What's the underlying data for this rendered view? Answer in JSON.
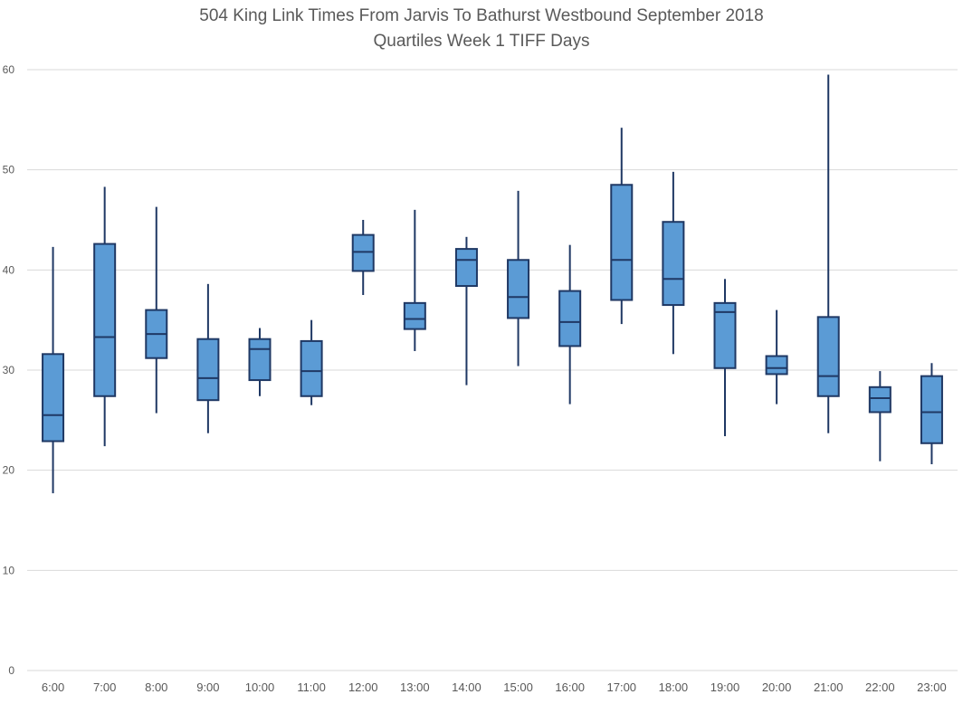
{
  "chart_data": {
    "type": "box",
    "title": "504 King Link Times From Jarvis To Bathurst Westbound September 2018",
    "subtitle": "Quartiles Week 1 TIFF Days",
    "xlabel": "",
    "ylabel": "",
    "ylim": [
      0,
      60
    ],
    "yticks": [
      "0",
      "10",
      "20",
      "30",
      "40",
      "50",
      "60"
    ],
    "grid": true,
    "legend": "none",
    "colors": {
      "box_fill": "#5b9bd5",
      "box_stroke": "#1f3864",
      "grid": "#d9d9d9",
      "text": "#595959"
    },
    "categories": [
      "6:00",
      "7:00",
      "8:00",
      "9:00",
      "10:00",
      "11:00",
      "12:00",
      "13:00",
      "14:00",
      "15:00",
      "16:00",
      "17:00",
      "18:00",
      "19:00",
      "20:00",
      "21:00",
      "22:00",
      "23:00"
    ],
    "boxes": [
      {
        "min": 17.7,
        "q1": 22.9,
        "median": 25.5,
        "q3": 31.6,
        "max": 42.3
      },
      {
        "min": 22.4,
        "q1": 27.4,
        "median": 33.3,
        "q3": 42.6,
        "max": 48.3
      },
      {
        "min": 25.7,
        "q1": 31.2,
        "median": 33.6,
        "q3": 36.0,
        "max": 46.3
      },
      {
        "min": 23.7,
        "q1": 27.0,
        "median": 29.2,
        "q3": 33.1,
        "max": 38.6
      },
      {
        "min": 27.4,
        "q1": 29.0,
        "median": 32.1,
        "q3": 33.1,
        "max": 34.2
      },
      {
        "min": 26.5,
        "q1": 27.4,
        "median": 29.9,
        "q3": 32.9,
        "max": 35.0
      },
      {
        "min": 37.5,
        "q1": 39.9,
        "median": 41.8,
        "q3": 43.5,
        "max": 45.0
      },
      {
        "min": 31.9,
        "q1": 34.1,
        "median": 35.1,
        "q3": 36.7,
        "max": 46.0
      },
      {
        "min": 28.5,
        "q1": 38.4,
        "median": 41.0,
        "q3": 42.1,
        "max": 43.3
      },
      {
        "min": 30.4,
        "q1": 35.2,
        "median": 37.3,
        "q3": 41.0,
        "max": 47.9
      },
      {
        "min": 26.6,
        "q1": 32.4,
        "median": 34.8,
        "q3": 37.9,
        "max": 42.5
      },
      {
        "min": 34.6,
        "q1": 37.0,
        "median": 41.0,
        "q3": 48.5,
        "max": 54.2
      },
      {
        "min": 31.6,
        "q1": 36.5,
        "median": 39.1,
        "q3": 44.8,
        "max": 49.8
      },
      {
        "min": 23.4,
        "q1": 30.2,
        "median": 35.8,
        "q3": 36.7,
        "max": 39.1
      },
      {
        "min": 26.6,
        "q1": 29.6,
        "median": 30.2,
        "q3": 31.4,
        "max": 36.0
      },
      {
        "min": 23.7,
        "q1": 27.4,
        "median": 29.4,
        "q3": 35.3,
        "max": 59.5
      },
      {
        "min": 20.9,
        "q1": 25.8,
        "median": 27.2,
        "q3": 28.3,
        "max": 29.9
      },
      {
        "min": 20.6,
        "q1": 22.7,
        "median": 25.8,
        "q3": 29.4,
        "max": 30.7
      }
    ]
  }
}
